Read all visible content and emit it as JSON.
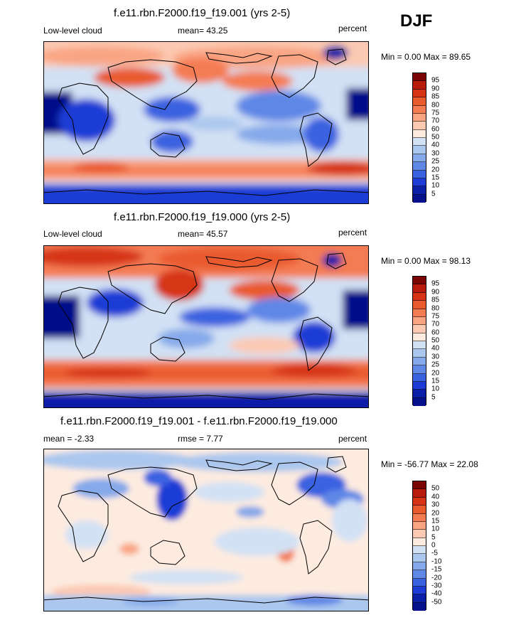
{
  "season": "DJF",
  "panels": [
    {
      "id": "panel-1",
      "title": "f.e11.rbn.F2000.f19_f19.001 (yrs 2-5)",
      "left_label": "Low-level cloud",
      "center_label": "mean=  43.25",
      "right_label": "percent",
      "minmax": "Min =   0.00 Max =  89.65",
      "colorbar": {
        "labels": [
          "95",
          "90",
          "85",
          "80",
          "75",
          "70",
          "60",
          "50",
          "40",
          "30",
          "25",
          "20",
          "15",
          "10",
          "5"
        ],
        "colors": [
          "#7a0403",
          "#b81b0c",
          "#d63414",
          "#e95a2d",
          "#f47c52",
          "#f9a584",
          "#fcc9b2",
          "#fdebe0",
          "#d2e1f4",
          "#abc7ee",
          "#85a9ea",
          "#5e87e6",
          "#3a62e0",
          "#1c3cd5",
          "#0a1ea8",
          "#06108a"
        ]
      }
    },
    {
      "id": "panel-2",
      "title": "f.e11.rbn.F2000.f19_f19.000 (yrs 2-5)",
      "left_label": "Low-level cloud",
      "center_label": "mean=  45.57",
      "right_label": "percent",
      "minmax": "Min =   0.00 Max =  98.13",
      "colorbar": {
        "labels": [
          "95",
          "90",
          "85",
          "80",
          "75",
          "70",
          "60",
          "50",
          "40",
          "30",
          "25",
          "20",
          "15",
          "10",
          "5"
        ],
        "colors": [
          "#7a0403",
          "#b81b0c",
          "#d63414",
          "#e95a2d",
          "#f47c52",
          "#f9a584",
          "#fcc9b2",
          "#fdebe0",
          "#d2e1f4",
          "#abc7ee",
          "#85a9ea",
          "#5e87e6",
          "#3a62e0",
          "#1c3cd5",
          "#0a1ea8",
          "#06108a"
        ]
      }
    },
    {
      "id": "panel-3",
      "title": "f.e11.rbn.F2000.f19_f19.001 - f.e11.rbn.F2000.f19_f19.000",
      "left_label": "mean =  -2.33",
      "center_label": "rmse =   7.77",
      "right_label": "percent",
      "minmax": "Min = -56.77 Max =  22.08",
      "colorbar": {
        "labels": [
          "50",
          "40",
          "30",
          "20",
          "15",
          "10",
          "5",
          "0",
          "-5",
          "-10",
          "-15",
          "-20",
          "-30",
          "-40",
          "-50"
        ],
        "colors": [
          "#7a0403",
          "#b81b0c",
          "#d63414",
          "#e95a2d",
          "#f47c52",
          "#f9a584",
          "#fcc9b2",
          "#fdebe0",
          "#d2e1f4",
          "#abc7ee",
          "#85a9ea",
          "#5e87e6",
          "#3a62e0",
          "#1c3cd5",
          "#0a1ea8",
          "#06108a"
        ]
      }
    }
  ]
}
